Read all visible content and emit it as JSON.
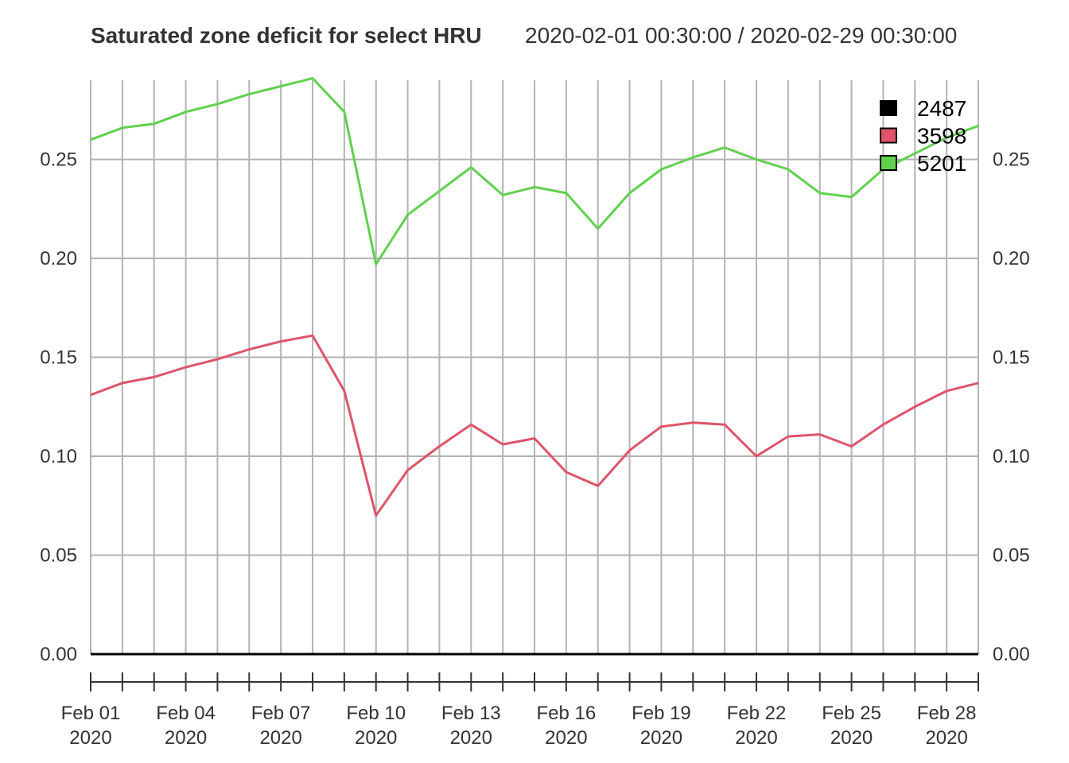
{
  "chart_data": {
    "type": "line",
    "title": "Saturated zone deficit for select HRU",
    "subtitle": "2020-02-01 00:30:00 / 2020-02-29 00:30:00",
    "xlabel": "",
    "ylabel": "",
    "x": [
      "2020-02-01",
      "2020-02-02",
      "2020-02-03",
      "2020-02-04",
      "2020-02-05",
      "2020-02-06",
      "2020-02-07",
      "2020-02-08",
      "2020-02-09",
      "2020-02-10",
      "2020-02-11",
      "2020-02-12",
      "2020-02-13",
      "2020-02-14",
      "2020-02-15",
      "2020-02-16",
      "2020-02-17",
      "2020-02-18",
      "2020-02-19",
      "2020-02-20",
      "2020-02-21",
      "2020-02-22",
      "2020-02-23",
      "2020-02-24",
      "2020-02-25",
      "2020-02-26",
      "2020-02-27",
      "2020-02-28",
      "2020-02-29"
    ],
    "xlim": [
      "2020-02-01",
      "2020-02-29"
    ],
    "ylim": [
      0,
      0.29
    ],
    "yticks": [
      0.0,
      0.05,
      0.1,
      0.15,
      0.2,
      0.25
    ],
    "ytick_labels": [
      "0.00",
      "0.05",
      "0.10",
      "0.15",
      "0.20",
      "0.25"
    ],
    "xtick_labels": [
      {
        "date": "2020-02-01",
        "line1": "Feb 01",
        "line2": "2020"
      },
      {
        "date": "2020-02-04",
        "line1": "Feb 04",
        "line2": "2020"
      },
      {
        "date": "2020-02-07",
        "line1": "Feb 07",
        "line2": "2020"
      },
      {
        "date": "2020-02-10",
        "line1": "Feb 10",
        "line2": "2020"
      },
      {
        "date": "2020-02-13",
        "line1": "Feb 13",
        "line2": "2020"
      },
      {
        "date": "2020-02-16",
        "line1": "Feb 16",
        "line2": "2020"
      },
      {
        "date": "2020-02-19",
        "line1": "Feb 19",
        "line2": "2020"
      },
      {
        "date": "2020-02-22",
        "line1": "Feb 22",
        "line2": "2020"
      },
      {
        "date": "2020-02-25",
        "line1": "Feb 25",
        "line2": "2020"
      },
      {
        "date": "2020-02-28",
        "line1": "Feb 28",
        "line2": "2020"
      }
    ],
    "grid": true,
    "y_axis_both_sides": true,
    "legend_position": "top-right",
    "series": [
      {
        "name": "2487",
        "color": "#000000",
        "values": [
          0,
          0,
          0,
          0,
          0,
          0,
          0,
          0,
          0,
          0,
          0,
          0,
          0,
          0,
          0,
          0,
          0,
          0,
          0,
          0,
          0,
          0,
          0,
          0,
          0,
          0,
          0,
          0,
          0
        ]
      },
      {
        "name": "3598",
        "color": "#DF536B",
        "values": [
          0.131,
          0.137,
          0.14,
          0.145,
          0.149,
          0.154,
          0.158,
          0.161,
          0.133,
          0.07,
          0.093,
          0.105,
          0.116,
          0.106,
          0.109,
          0.092,
          0.085,
          0.103,
          0.115,
          0.117,
          0.116,
          0.1,
          0.11,
          0.111,
          0.105,
          0.116,
          0.125,
          0.133,
          0.137
        ]
      },
      {
        "name": "5201",
        "color": "#61D04F",
        "values": [
          0.26,
          0.266,
          0.268,
          0.274,
          0.278,
          0.283,
          0.287,
          0.291,
          0.274,
          0.197,
          0.222,
          0.234,
          0.246,
          0.232,
          0.236,
          0.233,
          0.215,
          0.233,
          0.245,
          0.251,
          0.256,
          0.25,
          0.245,
          0.233,
          0.231,
          0.245,
          0.253,
          0.261,
          0.267
        ]
      }
    ]
  }
}
